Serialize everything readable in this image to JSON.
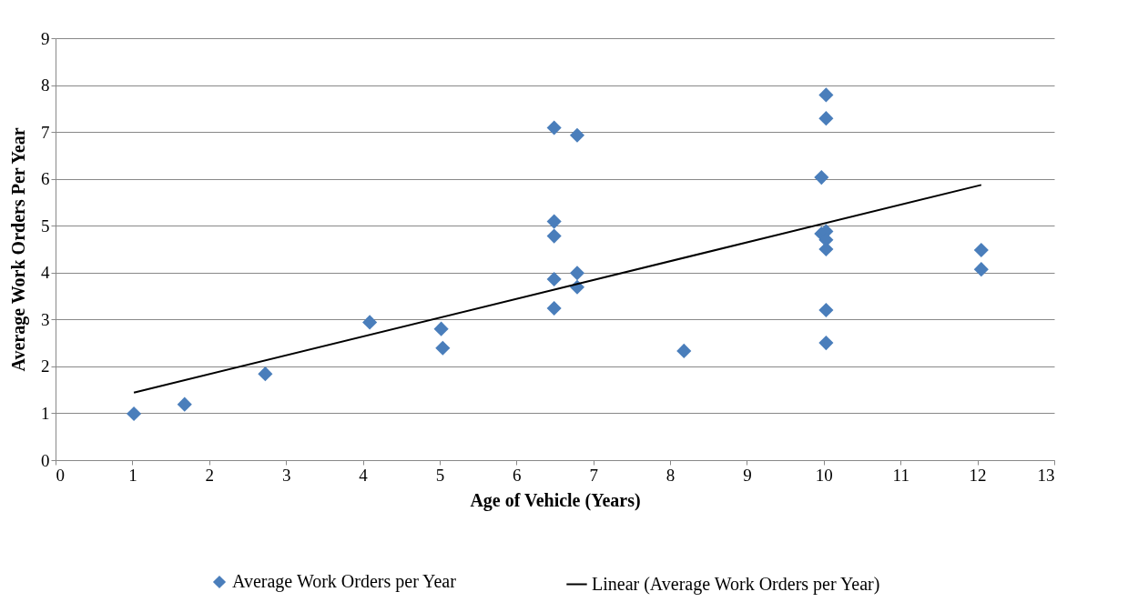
{
  "chart_data": {
    "type": "scatter",
    "xlabel": "Age of Vehicle (Years)",
    "ylabel": "Average Work Orders Per Year",
    "xlim": [
      0,
      13
    ],
    "xticks": [
      0,
      1,
      2,
      3,
      4,
      5,
      6,
      7,
      8,
      9,
      10,
      11,
      12,
      13
    ],
    "ylim": [
      0,
      9
    ],
    "yticks": [
      0,
      1,
      2,
      3,
      4,
      5,
      6,
      7,
      8,
      9
    ],
    "grid": "y",
    "legend": "bottom",
    "marker": "diamond",
    "series": [
      {
        "name": "Average Work Orders per Year",
        "color": "#4a7ebb",
        "x": [
          1.02,
          1.68,
          2.73,
          4.09,
          5.02,
          5.04,
          6.49,
          6.49,
          6.49,
          6.49,
          6.49,
          6.79,
          6.79,
          6.79,
          8.18,
          9.97,
          10.03,
          10.03,
          9.97,
          10.03,
          10.03,
          10.03,
          10.03,
          10.03,
          12.05,
          12.05
        ],
        "values": [
          0.99,
          1.19,
          1.84,
          2.94,
          2.8,
          2.39,
          7.09,
          5.09,
          4.78,
          3.86,
          3.24,
          6.93,
          3.99,
          3.69,
          2.33,
          6.03,
          7.79,
          7.29,
          4.83,
          4.88,
          4.7,
          4.5,
          3.2,
          2.5,
          4.48,
          4.07
        ]
      },
      {
        "name": "Linear (Average Work Orders per Year)",
        "type": "line",
        "marker": "none",
        "line_style": "solid",
        "color": "#000000",
        "x": [
          1.02,
          12.05
        ],
        "values": [
          1.44,
          5.87
        ]
      }
    ]
  }
}
